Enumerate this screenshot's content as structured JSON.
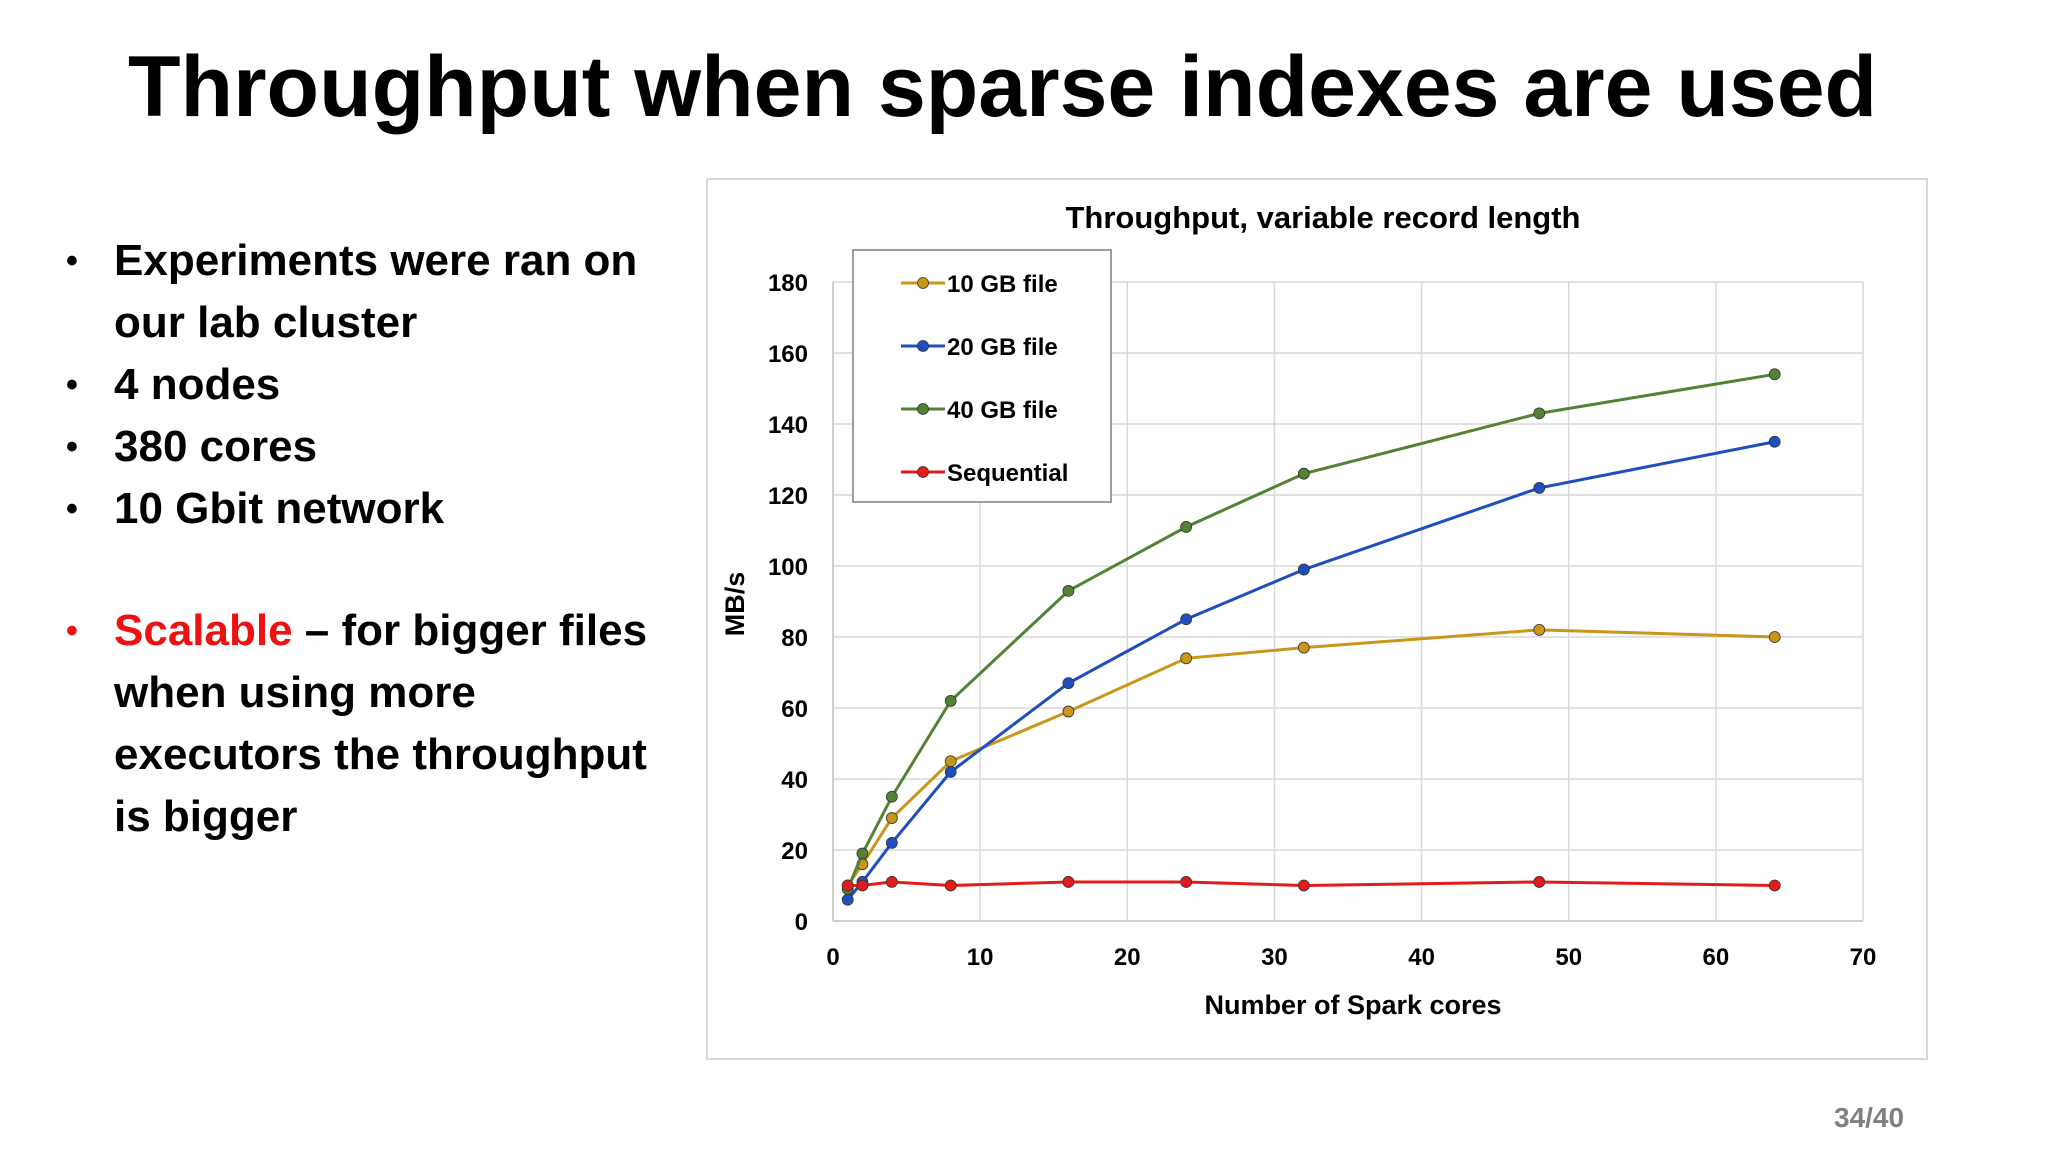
{
  "slide": {
    "title": "Throughput when sparse indexes are used",
    "bullets": [
      {
        "text": "Experiments were ran on our lab cluster"
      },
      {
        "text": "4 nodes"
      },
      {
        "text": "380 cores"
      },
      {
        "text": "10 Gbit network"
      }
    ],
    "scalable": {
      "highlight": "Scalable",
      "rest": " – for bigger files when using more executors the throughput is bigger"
    },
    "page_number": "34/40"
  },
  "colors": {
    "highlight": "#ee1111",
    "10gb": "#c9961a",
    "20gb": "#1f4fbf",
    "40gb": "#548235",
    "sequential": "#e31b1b"
  },
  "chart_data": {
    "type": "line",
    "title": "Throughput, variable record length",
    "xlabel": "Number of Spark cores",
    "ylabel": "MB/s",
    "xlim": [
      0,
      70
    ],
    "ylim": [
      0,
      180
    ],
    "xticks": [
      0,
      10,
      20,
      30,
      40,
      50,
      60,
      70
    ],
    "yticks": [
      0,
      20,
      40,
      60,
      80,
      100,
      120,
      140,
      160,
      180
    ],
    "grid": true,
    "legend_position": "top-left",
    "series": [
      {
        "name": "10 GB file",
        "color": "#c9961a",
        "points": [
          [
            1,
            10
          ],
          [
            2,
            16
          ],
          [
            4,
            29
          ],
          [
            8,
            45
          ],
          [
            16,
            59
          ],
          [
            24,
            74
          ],
          [
            32,
            77
          ],
          [
            48,
            82
          ],
          [
            64,
            80
          ]
        ]
      },
      {
        "name": "20 GB file",
        "color": "#1f4fbf",
        "points": [
          [
            1,
            6
          ],
          [
            2,
            11
          ],
          [
            4,
            22
          ],
          [
            8,
            42
          ],
          [
            16,
            67
          ],
          [
            24,
            85
          ],
          [
            32,
            99
          ],
          [
            48,
            122
          ],
          [
            64,
            135
          ]
        ]
      },
      {
        "name": "40 GB file",
        "color": "#548235",
        "points": [
          [
            1,
            9
          ],
          [
            2,
            19
          ],
          [
            4,
            35
          ],
          [
            8,
            62
          ],
          [
            16,
            93
          ],
          [
            24,
            111
          ],
          [
            32,
            126
          ],
          [
            48,
            143
          ],
          [
            64,
            154
          ]
        ]
      },
      {
        "name": "Sequential",
        "color": "#e31b1b",
        "points": [
          [
            1,
            10
          ],
          [
            2,
            10
          ],
          [
            4,
            11
          ],
          [
            8,
            10
          ],
          [
            16,
            11
          ],
          [
            24,
            11
          ],
          [
            32,
            10
          ],
          [
            48,
            11
          ],
          [
            64,
            10
          ]
        ]
      }
    ]
  }
}
